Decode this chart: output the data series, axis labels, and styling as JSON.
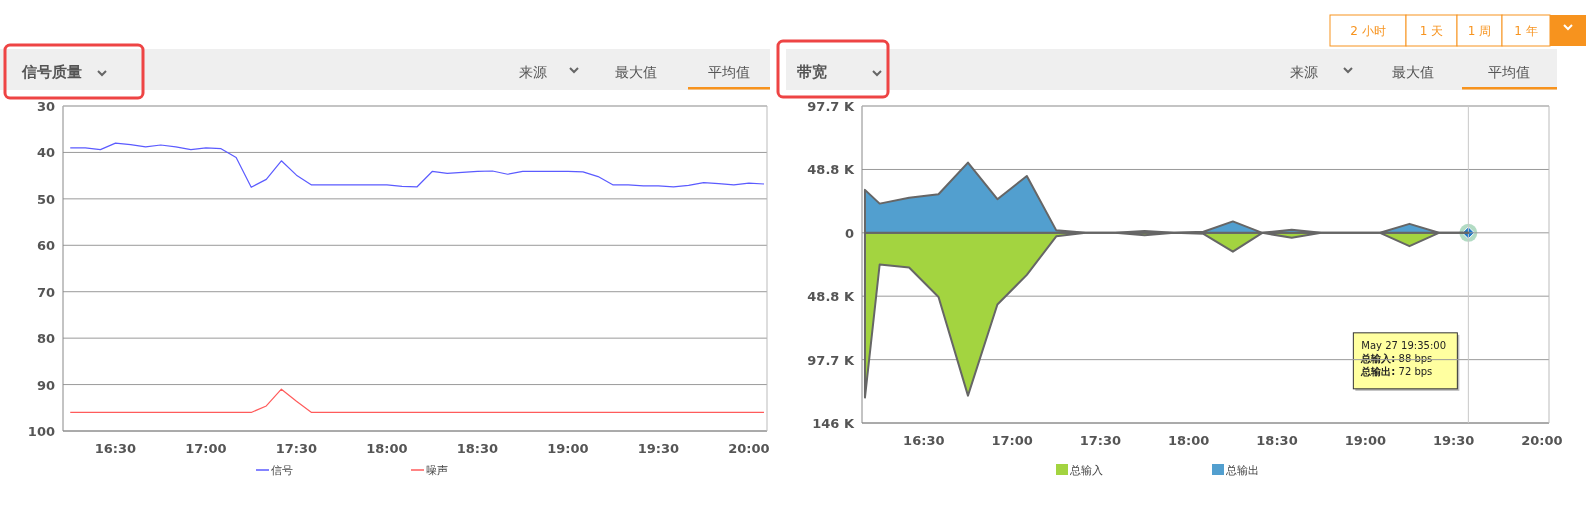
{
  "chart_data": [
    {
      "type": "line",
      "title": "信号质量",
      "annotations": [
        "来源",
        "最大值",
        "平均值"
      ],
      "x": [
        16.25,
        16.3333,
        16.4167,
        16.5,
        16.5833,
        16.6667,
        16.75,
        16.8333,
        16.9167,
        17,
        17.0833,
        17.1667,
        17.25,
        17.3333,
        17.4167,
        17.5,
        17.5833,
        17.6667,
        17.75,
        17.8333,
        17.9167,
        18,
        18.0833,
        18.1667,
        18.25,
        18.3333,
        18.4167,
        18.5,
        18.5833,
        18.6667,
        18.75,
        18.8333,
        18.9167,
        19,
        19.0833,
        19.1667,
        19.25,
        19.3333,
        19.4167,
        19.5,
        19.5833,
        19.6667,
        19.75,
        19.8333,
        19.9167,
        20,
        20.0833
      ],
      "xlim": [
        16.21,
        20.1
      ],
      "xticks": [
        {
          "value": 16.5,
          "label": "16:30"
        },
        {
          "value": 17,
          "label": "17:00"
        },
        {
          "value": 17.5,
          "label": "17:30"
        },
        {
          "value": 18,
          "label": "18:00"
        },
        {
          "value": 18.5,
          "label": "18:30"
        },
        {
          "value": 19,
          "label": "19:00"
        },
        {
          "value": 19.5,
          "label": "19:30"
        },
        {
          "value": 20,
          "label": "20:00"
        }
      ],
      "ylim": [
        100,
        30
      ],
      "yticks": [
        30,
        40,
        50,
        60,
        70,
        80,
        90,
        100
      ],
      "grid": "y",
      "legend": "bottom",
      "series": [
        {
          "name": "信号",
          "color": "#5b5bff",
          "values": [
            39.0,
            39.0,
            39.4,
            38.0,
            38.3,
            38.8,
            38.4,
            38.8,
            39.4,
            39.0,
            39.2,
            41.1,
            47.5,
            45.8,
            41.8,
            44.9,
            47.0,
            47.0,
            47.0,
            47.0,
            47.0,
            47.0,
            47.3,
            47.4,
            44.1,
            44.5,
            44.3,
            44.1,
            44.0,
            44.7,
            44.1,
            44.1,
            44.1,
            44.1,
            44.2,
            45.2,
            47.0,
            47.0,
            47.2,
            47.2,
            47.4,
            47.1,
            46.5,
            46.7,
            47.0,
            46.6,
            46.8
          ]
        },
        {
          "name": "噪声",
          "color": "#ff5b5b",
          "values": [
            96,
            96,
            96,
            96,
            96,
            96,
            96,
            96,
            96,
            96,
            96,
            96,
            96,
            94.6,
            91.0,
            93.6,
            96,
            96,
            96,
            96,
            96,
            96,
            96,
            96,
            96,
            96,
            96,
            96,
            96,
            96,
            96,
            96,
            96,
            96,
            96,
            96,
            96,
            96,
            96,
            96,
            96,
            96,
            96,
            96,
            96,
            96,
            96
          ]
        }
      ]
    },
    {
      "type": "area",
      "title": "带宽",
      "annotations": [
        "来源",
        "最大值",
        "平均值",
        "May 27 19:35:00\n**总输入:** 88 bps\n**总输出:** 72 bps"
      ],
      "x": [
        16.1667,
        16.25,
        16.4167,
        16.5833,
        16.75,
        16.9167,
        17.0833,
        17.25,
        17.4167,
        17.5833,
        17.75,
        17.9167,
        18.0833,
        18.25,
        18.4167,
        18.5833,
        18.75,
        18.9167,
        19.0833,
        19.25,
        19.4167,
        19.5833
      ],
      "xlim": [
        16.15,
        20.04
      ],
      "xticks": [
        {
          "value": 16.5,
          "label": "16:30"
        },
        {
          "value": 17,
          "label": "17:00"
        },
        {
          "value": 17.5,
          "label": "17:30"
        },
        {
          "value": 18,
          "label": "18:00"
        },
        {
          "value": 18.5,
          "label": "18:30"
        },
        {
          "value": 19,
          "label": "19:00"
        },
        {
          "value": 19.5,
          "label": "19:30"
        },
        {
          "value": 20,
          "label": "20:00"
        }
      ],
      "ylim": [
        -146.5,
        97.7
      ],
      "yticks": [
        {
          "value": 97.7,
          "label": "97.7 K"
        },
        {
          "value": 48.8,
          "label": "48.8 K"
        },
        0,
        {
          "value": -48.8,
          "label": "48.8 K"
        },
        {
          "value": -97.7,
          "label": "97.7 K"
        },
        {
          "value": -146.5,
          "label": "146 K"
        }
      ],
      "grid": "y",
      "legend": "bottom",
      "ref_lines": [
        {
          "axis": "x",
          "value": 19.5833,
          "color": "#c8c8c8"
        }
      ],
      "series": [
        {
          "name": "总输入",
          "color": "#a3d440",
          "values": [
            -126.9,
            -24.4,
            -26.7,
            -49.5,
            -125.4,
            -55.2,
            -32.4,
            -2.7,
            0,
            0,
            -1.9,
            0,
            -0.8,
            -14.5,
            0,
            -3.8,
            0,
            0,
            0,
            -10.3,
            0,
            0
          ]
        },
        {
          "name": "总输出",
          "color": "#529fcf",
          "values": [
            33.1,
            22.5,
            27.1,
            29.7,
            54.1,
            25.9,
            43.8,
            1.9,
            0,
            0,
            1.5,
            0,
            0.8,
            8.8,
            0,
            2.3,
            0,
            0,
            0,
            6.9,
            0,
            0
          ]
        }
      ]
    },
    {
      "type": "other",
      "annotations": [
        "2 小时",
        "1 天",
        "1 周",
        "1 年"
      ]
    }
  ]
}
